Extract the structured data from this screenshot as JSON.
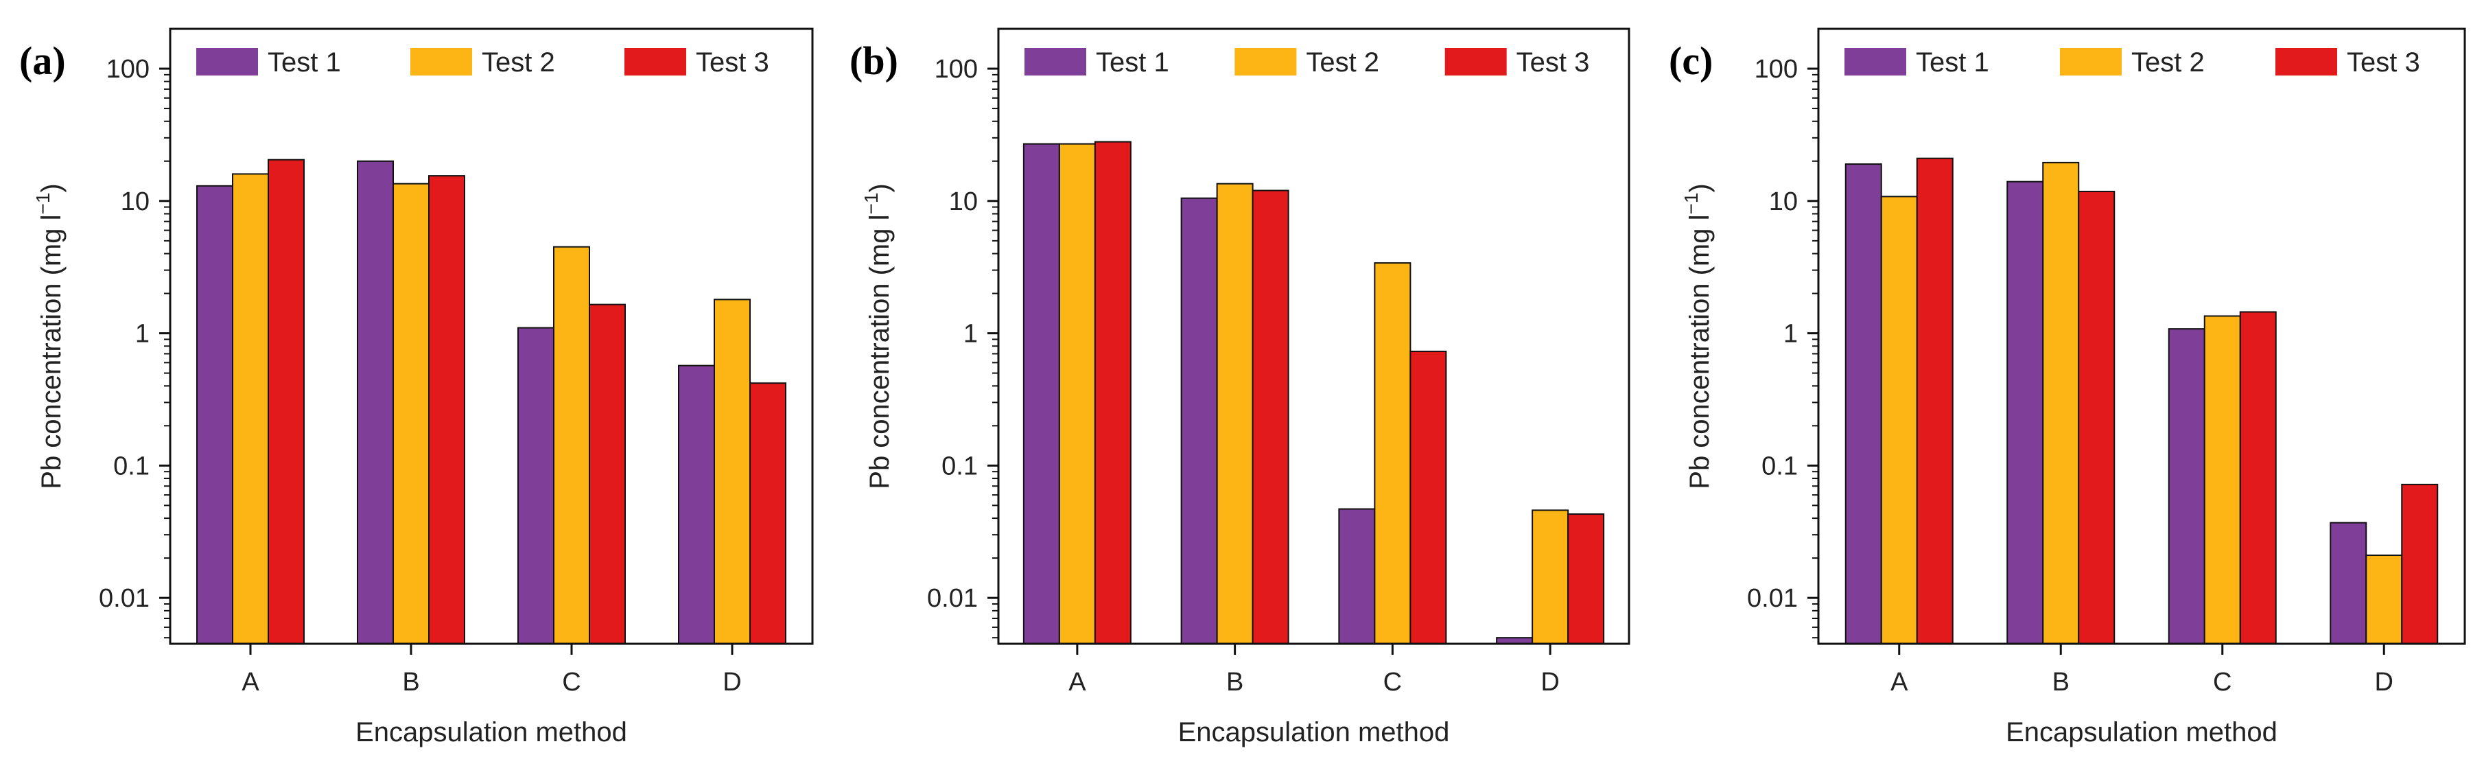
{
  "colors": {
    "test1": "#7f3f98",
    "test2": "#fdb515",
    "test3": "#e31a1c"
  },
  "chart_data": [
    {
      "type": "bar",
      "panel": "(a)",
      "xlabel": "Encapsulation method",
      "ylabel_main": "Pb concentration (mg l",
      "ylabel_sup": "−1",
      "ylabel_close": ")",
      "yscale": "log",
      "ylim": [
        0.0045,
        200
      ],
      "yticks": [
        0.01,
        0.1,
        1,
        10,
        100
      ],
      "ytick_labels": [
        "0.01",
        "0.1",
        "1",
        "10",
        "100"
      ],
      "categories": [
        "A",
        "B",
        "C",
        "D"
      ],
      "series": [
        {
          "name": "Test 1",
          "values": [
            13,
            20,
            1.1,
            0.57
          ]
        },
        {
          "name": "Test 2",
          "values": [
            16,
            13.5,
            4.5,
            1.8
          ]
        },
        {
          "name": "Test 3",
          "values": [
            20.5,
            15.5,
            1.65,
            0.42
          ]
        }
      ]
    },
    {
      "type": "bar",
      "panel": "(b)",
      "xlabel": "Encapsulation method",
      "ylabel_main": "Pb concentration (mg l",
      "ylabel_sup": "−1",
      "ylabel_close": ")",
      "yscale": "log",
      "ylim": [
        0.0045,
        200
      ],
      "yticks": [
        0.01,
        0.1,
        1,
        10,
        100
      ],
      "ytick_labels": [
        "0.01",
        "0.1",
        "1",
        "10",
        "100"
      ],
      "categories": [
        "A",
        "B",
        "C",
        "D"
      ],
      "series": [
        {
          "name": "Test 1",
          "values": [
            27,
            10.5,
            0.047,
            0.005
          ]
        },
        {
          "name": "Test 2",
          "values": [
            27,
            13.5,
            3.4,
            0.046
          ]
        },
        {
          "name": "Test 3",
          "values": [
            28,
            12,
            0.73,
            0.043
          ]
        }
      ]
    },
    {
      "type": "bar",
      "panel": "(c)",
      "xlabel": "Encapsulation method",
      "ylabel_main": "Pb concentration (mg l",
      "ylabel_sup": "−1",
      "ylabel_close": ")",
      "yscale": "log",
      "ylim": [
        0.0045,
        200
      ],
      "yticks": [
        0.01,
        0.1,
        1,
        10,
        100
      ],
      "ytick_labels": [
        "0.01",
        "0.1",
        "1",
        "10",
        "100"
      ],
      "categories": [
        "A",
        "B",
        "C",
        "D"
      ],
      "series": [
        {
          "name": "Test 1",
          "values": [
            19,
            14,
            1.08,
            0.037
          ]
        },
        {
          "name": "Test 2",
          "values": [
            10.8,
            19.5,
            1.35,
            0.021
          ]
        },
        {
          "name": "Test 3",
          "values": [
            21,
            11.8,
            1.45,
            0.072
          ]
        }
      ]
    }
  ]
}
